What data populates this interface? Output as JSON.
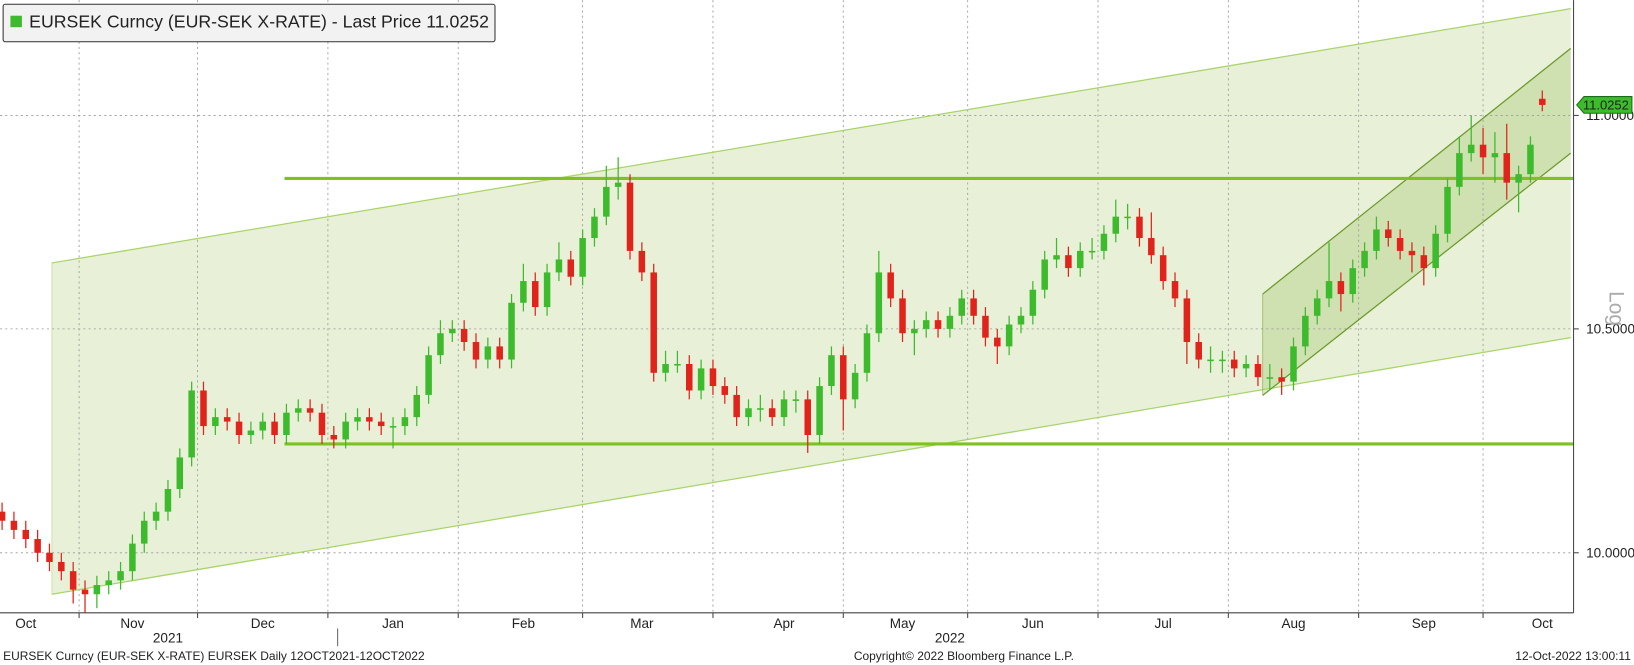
{
  "chart_data": {
    "type": "candlestick",
    "title": "EURSEK Curncy (EUR-SEK X-RATE) - Last Price 11.0252",
    "legend_color": "#3dbb2d",
    "footer_left": "EURSEK Curncy (EUR-SEK X-RATE) EURSEK  Daily 12OCT2021-12OCT2022",
    "footer_center": "Copyright© 2022 Bloomberg Finance L.P.",
    "footer_right": "12-Oct-2022 13:00:11",
    "scale_label": "Log",
    "log_scale": true,
    "grid": true,
    "up_color": "#3dbb2d",
    "down_color": "#e0241b",
    "ylim": [
      9.87,
      11.28
    ],
    "yticks": [
      {
        "value": 10.0,
        "label": "10.0000"
      },
      {
        "value": 10.5,
        "label": "10.5000"
      },
      {
        "value": 11.0,
        "label": "11.0000"
      }
    ],
    "categories": [
      null,
      null,
      "Oct",
      null,
      null,
      null,
      null,
      null,
      null,
      null,
      null,
      "Nov",
      null,
      null,
      null,
      null,
      null,
      null,
      null,
      null,
      null,
      null,
      "Dec",
      null,
      null,
      null,
      null,
      null,
      null,
      null,
      null,
      null,
      null,
      "Jan",
      null,
      null,
      null,
      null,
      null,
      null,
      null,
      null,
      null,
      null,
      "Feb",
      null,
      null,
      null,
      null,
      null,
      null,
      null,
      null,
      null,
      "Mar",
      null,
      null,
      null,
      null,
      null,
      null,
      null,
      null,
      null,
      null,
      null,
      "Apr",
      null,
      null,
      null,
      null,
      null,
      null,
      null,
      null,
      null,
      "May",
      null,
      null,
      null,
      null,
      null,
      null,
      null,
      null,
      null,
      null,
      "Jun",
      null,
      null,
      null,
      null,
      null,
      null,
      null,
      null,
      null,
      null,
      "Jul",
      null,
      null,
      null,
      null,
      null,
      null,
      null,
      null,
      null,
      null,
      "Aug",
      null,
      null,
      null,
      null,
      null,
      null,
      null,
      null,
      null,
      null,
      "Sep",
      null,
      null,
      null,
      null,
      null,
      null,
      null,
      null,
      null,
      "Oct"
    ],
    "year_categories": [
      null,
      null,
      null,
      null,
      null,
      null,
      null,
      null,
      null,
      null,
      null,
      null,
      null,
      null,
      "2021",
      null,
      null,
      null,
      null,
      null,
      null,
      null,
      null,
      null,
      null,
      null,
      null,
      null,
      null,
      null,
      null,
      null,
      null,
      null,
      null,
      null,
      null,
      null,
      null,
      null,
      null,
      null,
      null,
      null,
      null,
      null,
      null,
      null,
      null,
      null,
      null,
      null,
      null,
      null,
      null,
      null,
      null,
      null,
      null,
      null,
      null,
      null,
      null,
      null,
      null,
      null,
      null,
      null,
      null,
      null,
      null,
      null,
      null,
      null,
      null,
      null,
      null,
      null,
      null,
      null,
      "2022",
      null,
      null,
      null,
      null,
      null,
      null,
      null,
      null,
      null,
      null,
      null,
      null,
      null,
      null,
      null,
      null,
      null,
      null,
      null,
      null,
      null,
      null,
      null,
      null,
      null,
      null,
      null,
      null,
      null,
      null,
      null,
      null,
      null,
      null,
      null,
      null,
      null,
      null,
      null,
      null,
      null,
      null,
      null,
      null,
      null,
      null,
      null,
      null,
      null,
      null
    ],
    "open": [
      10.09,
      10.07,
      10.05,
      10.03,
      10.0,
      9.98,
      9.96,
      9.92,
      9.91,
      9.93,
      9.94,
      9.96,
      10.02,
      10.07,
      10.09,
      10.14,
      10.21,
      10.36,
      10.28,
      10.3,
      10.29,
      10.26,
      10.27,
      10.29,
      10.26,
      10.31,
      10.32,
      10.31,
      10.26,
      10.25,
      10.29,
      10.3,
      10.29,
      10.28,
      10.28,
      10.3,
      10.35,
      10.44,
      10.49,
      10.5,
      10.47,
      10.43,
      10.46,
      10.43,
      10.56,
      10.61,
      10.55,
      10.63,
      10.66,
      10.62,
      10.71,
      10.76,
      10.83,
      10.84,
      10.68,
      10.63,
      10.4,
      10.42,
      10.42,
      10.36,
      10.41,
      10.37,
      10.35,
      10.3,
      10.32,
      10.32,
      10.3,
      10.34,
      10.34,
      10.26,
      10.37,
      10.44,
      10.34,
      10.4,
      10.49,
      10.63,
      10.57,
      10.49,
      10.5,
      10.52,
      10.5,
      10.53,
      10.57,
      10.53,
      10.48,
      10.46,
      10.51,
      10.53,
      10.59,
      10.66,
      10.67,
      10.64,
      10.68,
      10.68,
      10.72,
      10.76,
      10.76,
      10.71,
      10.67,
      10.61,
      10.57,
      10.47,
      10.43,
      10.43,
      10.43,
      10.41,
      10.42,
      10.39,
      10.39,
      10.38,
      10.46,
      10.53,
      10.57,
      10.61,
      10.58,
      10.64,
      10.68,
      10.73,
      10.71,
      10.68,
      10.67,
      10.64,
      10.72,
      10.83,
      10.91,
      10.93,
      10.9,
      10.91,
      10.84,
      10.86,
      11.04
    ],
    "high": [
      10.11,
      10.09,
      10.07,
      10.05,
      10.02,
      10.0,
      9.98,
      9.94,
      9.95,
      9.96,
      9.98,
      10.04,
      10.09,
      10.11,
      10.16,
      10.23,
      10.38,
      10.38,
      10.32,
      10.32,
      10.31,
      10.29,
      10.31,
      10.31,
      10.33,
      10.34,
      10.34,
      10.33,
      10.28,
      10.31,
      10.32,
      10.32,
      10.31,
      10.3,
      10.32,
      10.37,
      10.46,
      10.52,
      10.52,
      10.52,
      10.49,
      10.48,
      10.48,
      10.58,
      10.65,
      10.63,
      10.65,
      10.7,
      10.68,
      10.73,
      10.78,
      10.88,
      10.9,
      10.86,
      10.7,
      10.65,
      10.45,
      10.45,
      10.44,
      10.43,
      10.43,
      10.39,
      10.37,
      10.34,
      10.35,
      10.34,
      10.36,
      10.36,
      10.36,
      10.39,
      10.46,
      10.46,
      10.42,
      10.51,
      10.68,
      10.65,
      10.59,
      10.52,
      10.54,
      10.54,
      10.55,
      10.59,
      10.59,
      10.55,
      10.5,
      10.53,
      10.55,
      10.61,
      10.68,
      10.71,
      10.69,
      10.7,
      10.71,
      10.74,
      10.8,
      10.79,
      10.78,
      10.77,
      10.69,
      10.63,
      10.59,
      10.49,
      10.46,
      10.45,
      10.45,
      10.44,
      10.44,
      10.42,
      10.41,
      10.48,
      10.55,
      10.59,
      10.7,
      10.63,
      10.66,
      10.7,
      10.76,
      10.75,
      10.73,
      10.7,
      10.69,
      10.74,
      10.85,
      10.95,
      11.0,
      10.97,
      10.96,
      10.98,
      10.88,
      10.95,
      11.06
    ],
    "low": [
      10.05,
      10.03,
      10.01,
      9.98,
      9.96,
      9.94,
      9.89,
      9.87,
      9.88,
      9.91,
      9.92,
      9.94,
      10.0,
      10.05,
      10.07,
      10.12,
      10.19,
      10.26,
      10.26,
      10.27,
      10.24,
      10.24,
      10.25,
      10.24,
      10.24,
      10.29,
      10.29,
      10.24,
      10.23,
      10.23,
      10.27,
      10.27,
      10.26,
      10.23,
      10.26,
      10.28,
      10.33,
      10.42,
      10.47,
      10.45,
      10.41,
      10.41,
      10.41,
      10.41,
      10.54,
      10.53,
      10.53,
      10.61,
      10.6,
      10.6,
      10.69,
      10.74,
      10.8,
      10.66,
      10.61,
      10.38,
      10.38,
      10.4,
      10.34,
      10.34,
      10.35,
      10.33,
      10.28,
      10.28,
      10.29,
      10.28,
      10.28,
      10.31,
      10.22,
      10.24,
      10.35,
      10.27,
      10.32,
      10.38,
      10.47,
      10.55,
      10.47,
      10.44,
      10.48,
      10.48,
      10.48,
      10.51,
      10.51,
      10.46,
      10.42,
      10.44,
      10.49,
      10.51,
      10.57,
      10.64,
      10.62,
      10.62,
      10.66,
      10.66,
      10.7,
      10.73,
      10.69,
      10.65,
      10.59,
      10.55,
      10.42,
      10.41,
      10.4,
      10.4,
      10.39,
      10.39,
      10.37,
      10.36,
      10.35,
      10.36,
      10.44,
      10.51,
      10.55,
      10.54,
      10.56,
      10.62,
      10.66,
      10.69,
      10.66,
      10.63,
      10.6,
      10.62,
      10.7,
      10.81,
      10.89,
      10.86,
      10.84,
      10.8,
      10.77,
      10.84,
      11.01
    ],
    "close": [
      10.07,
      10.05,
      10.03,
      10.0,
      9.98,
      9.96,
      9.92,
      9.91,
      9.93,
      9.94,
      9.96,
      10.02,
      10.07,
      10.09,
      10.14,
      10.21,
      10.36,
      10.28,
      10.3,
      10.29,
      10.26,
      10.27,
      10.29,
      10.26,
      10.31,
      10.32,
      10.31,
      10.26,
      10.25,
      10.29,
      10.3,
      10.29,
      10.28,
      10.28,
      10.3,
      10.35,
      10.44,
      10.49,
      10.5,
      10.47,
      10.43,
      10.46,
      10.43,
      10.56,
      10.61,
      10.55,
      10.63,
      10.66,
      10.62,
      10.71,
      10.76,
      10.83,
      10.84,
      10.68,
      10.63,
      10.4,
      10.42,
      10.42,
      10.36,
      10.41,
      10.37,
      10.35,
      10.3,
      10.32,
      10.32,
      10.3,
      10.34,
      10.34,
      10.26,
      10.37,
      10.44,
      10.34,
      10.4,
      10.49,
      10.63,
      10.57,
      10.49,
      10.5,
      10.52,
      10.5,
      10.53,
      10.57,
      10.53,
      10.48,
      10.46,
      10.51,
      10.53,
      10.59,
      10.66,
      10.67,
      10.64,
      10.68,
      10.68,
      10.72,
      10.76,
      10.76,
      10.71,
      10.67,
      10.61,
      10.57,
      10.47,
      10.43,
      10.43,
      10.43,
      10.41,
      10.42,
      10.39,
      10.39,
      10.38,
      10.46,
      10.53,
      10.57,
      10.61,
      10.58,
      10.64,
      10.68,
      10.73,
      10.71,
      10.68,
      10.67,
      10.64,
      10.72,
      10.83,
      10.91,
      10.93,
      10.9,
      10.91,
      10.84,
      10.86,
      10.93,
      11.0252
    ],
    "hlines": [
      10.85,
      10.24
    ],
    "hline_color": "#7dc21e",
    "channels": [
      {
        "x": [
          4.2,
          132.4
        ],
        "upper": [
          10.652,
          11.259
        ],
        "lower": [
          9.91,
          10.48
        ],
        "color": "#a8d46a",
        "fill": "rgba(190,215,140,0.35)"
      },
      {
        "x": [
          106.4,
          132.4
        ],
        "upper": [
          10.58,
          11.162
        ],
        "lower": [
          10.349,
          10.91
        ],
        "color": "#6a9a2a",
        "fill": "rgba(150,185,90,0.3)"
      }
    ]
  }
}
